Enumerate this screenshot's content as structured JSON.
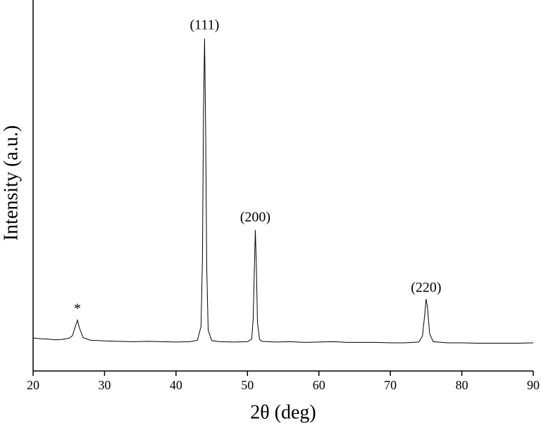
{
  "chart_data": {
    "type": "line",
    "x_label": "2θ (deg)",
    "y_label": "Intensity (a.u.)",
    "xlim": [
      20,
      90
    ],
    "xticks": [
      20,
      30,
      40,
      50,
      60,
      70,
      80,
      90
    ],
    "ylim": [
      0,
      100
    ],
    "series": [
      {
        "color": "#000000",
        "x": [
          20,
          21,
          22,
          23,
          24,
          25,
          25.5,
          26,
          26.2,
          26.5,
          27,
          28,
          29,
          30,
          32,
          34,
          36,
          38,
          40,
          42,
          43,
          43.5,
          43.7,
          43.85,
          44,
          44.15,
          44.3,
          44.5,
          45,
          46,
          48,
          50,
          50.6,
          50.8,
          51,
          51.1,
          51.25,
          51.4,
          51.7,
          52,
          54,
          56,
          58,
          60,
          62,
          64,
          66,
          68,
          70,
          72,
          74,
          74.5,
          74.8,
          75,
          75.2,
          75.5,
          76,
          78,
          80,
          82,
          84,
          86,
          88,
          90
        ],
        "values": [
          8.9,
          8.7,
          8.6,
          8.4,
          8.5,
          8.8,
          9.5,
          12.5,
          13.7,
          11.5,
          9.0,
          8.3,
          8.2,
          8.1,
          8.0,
          7.9,
          8.0,
          7.9,
          7.8,
          7.9,
          8.3,
          12,
          30,
          70,
          89.6,
          65,
          28,
          11,
          8.2,
          7.9,
          7.8,
          7.9,
          8.6,
          14,
          30,
          38,
          28,
          13,
          8.5,
          8.0,
          7.8,
          7.9,
          7.7,
          7.8,
          7.9,
          7.7,
          7.7,
          7.7,
          7.6,
          7.6,
          7.8,
          9.5,
          15,
          19.4,
          17,
          10,
          7.9,
          7.6,
          7.6,
          7.5,
          7.5,
          7.5,
          7.5,
          7.6
        ]
      }
    ],
    "annotations": [
      {
        "text": "*",
        "x": 26.2,
        "y": 16.5
      },
      {
        "text": "(111)",
        "x": 44,
        "y": 93
      },
      {
        "text": "(200)",
        "x": 51.1,
        "y": 41.2
      },
      {
        "text": "(220)",
        "x": 75,
        "y": 22.2
      }
    ]
  }
}
